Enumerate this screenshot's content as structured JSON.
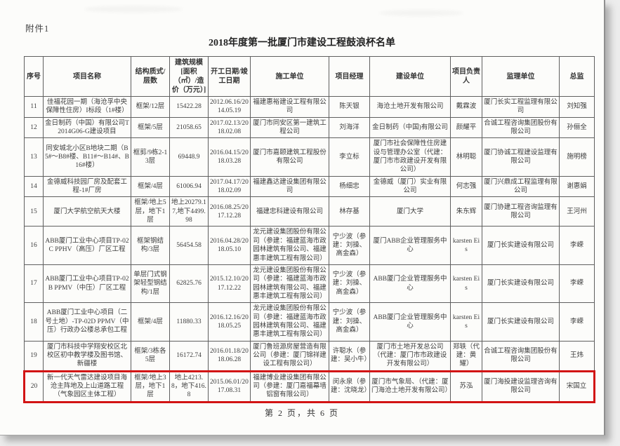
{
  "page": {
    "attachment_label": "附件1",
    "title": "2018年度第一批厦门市建设工程鼓浪杯名单",
    "footer": "第 2 页，共 6 页"
  },
  "table": {
    "columns": [
      "序号",
      "项目名称",
      "结构质式/层数",
      "建筑规模[面积（㎡）/造价（万元）]",
      "开工日期/竣工日期",
      "施工单位",
      "项目经理",
      "建设单位",
      "项目负责人",
      "监理单位",
      "总监"
    ],
    "rows": [
      [
        "11",
        "佳福花园一期（海沧孚中央保障性住房）I标段（1#楼）",
        "框架/12层",
        "15422.28",
        "2012.06.16/2014.05.19",
        "福建惠裕建设工程有限公司",
        "陈天银",
        "海沧土地开发有限公司",
        "戴霖波",
        "厦门长实工程监理有限公司",
        "刘知强"
      ],
      [
        "12",
        "金日制药（中国）有限公司T2014G06-G建设项目",
        "框架/5层",
        "21058.65",
        "2017.02.13/2018.02.08",
        "厦门市同安区第一建筑工程公司",
        "刘海洋",
        "金日制药（中国)有限公司",
        "颜耀平",
        "合诚工程咨询集团股份有限公司",
        "孙俪全"
      ],
      [
        "13",
        "同安城北小区B地块二期（B5#～B8#楼、B11#～B14#、B16#楼）",
        "框剪/9栋2-13层",
        "69448.9",
        "2016.04.15/2018.03.28",
        "厦门市嘉颐建筑工程股份有限公司",
        "李立标",
        "厦门市社会保障性住房建设与管理办公室（代建：厦门市市政建设开发有限公司）",
        "林明聪",
        "厦门协诚工程建设监理有限公司",
        "施明榜"
      ],
      [
        "14",
        "金德威科技园厂房及配套工程-1#厂房",
        "框架/4层",
        "61006.94",
        "2017.04.17/2018.02.09",
        "福建鑫达建设集团有限公司",
        "杨细忠",
        "金德威（厦门）实业有限公司",
        "何志强",
        "厦门兴鼎成工程监理有限公司",
        "谢惠娟"
      ],
      [
        "15",
        "厦门大学航空航天大楼",
        "框架/地上5层，地下1层",
        "地上20279.17,地下4499.98",
        "2016.08.25/2017.12.28",
        "福建忠科建设有限公司",
        "林存基",
        "厦门大学",
        "朱东辉",
        "厦门协建工程咨询监理有限公司",
        "王河州"
      ],
      [
        "16",
        "ABB厦门工业中心项目TP-02C PPHV（高压）厂区工程",
        "框架钢结构/3层",
        "56454.58",
        "2016.04.28/2018.05.10",
        "龙元建设集团股份有限公司（参建：福建蓝海市政园林建筑有限公司、福建惠丰建筑工程有限公司）",
        "宁少波（参建：刘操、高金森）",
        "厦门ABB企业管理服务中心",
        "karsten Eis",
        "厦门长实建设有限公司",
        "李嵘"
      ],
      [
        "17",
        "ABB厦门工业中心项目TP-02B PPMV（中压）厂区工程",
        "单层门式钢架轻型钢结构/1层",
        "62825.76",
        "2015.12.10/2017.12.22",
        "龙元建设集团股份有限公司（参建：福建蓝海市政园林建筑有限公司、福建惠丰建筑工程有限公司）",
        "宁少波（参建：刘操、高金森）",
        "ABB厦门企业管理服务中心",
        "karsten Eis",
        "厦门长实建设有限公司",
        "李嵘"
      ],
      [
        "18",
        "ABB厦门工业中心项目（二号土地）-TP-02D PPMV（中压）行政办公楼总承包工程",
        "框架/4层",
        "11880.33",
        "2016.12.16/2018.05.25",
        "龙元建设集团股份有限公司（参建：福建蓝海市政园林建筑有限公司、福建惠丰建筑工程有限公司）",
        "宁少波（参建：刘操、高金森）",
        "ABB厦门企业管理服务中心",
        "karsten Eis",
        "厦门长实建设有限公司",
        "李嵘"
      ],
      [
        "19",
        "厦门市科技中学翔安校区北校区初中教学楼及图书馆、新疆楼",
        "框架/3栋各5层",
        "16172.74",
        "2016.01.18/2018.06.28",
        "厦门鲁班源房屋营造有限公司（参建：厦门锦祥建设工程有限公司）",
        "许聪水（参建：吴小牛）",
        "厦门市土地开发总公司（代建：厦门市市政建设开发有限公司）",
        "郑轶（代建：黄耀）",
        "合诚工程咨询集团股份有限公司",
        "王炜"
      ],
      [
        "20",
        "新一代天气雷达建设项目海沧主阵地及上山道路工程（气象园区主体工程）",
        "框架/地上3层，地下1层",
        "地上4213.8，地下416.8",
        "2015.06.01/2017.08.31",
        "福建博业建设集团有限公司（参建：厦门嘉福幕墙铝窗有限公司）",
        "闵永泉（参建：沈晓龙）",
        "厦门市气象局、（代建：厦门海沧土地开发有限公司）",
        "苏泓",
        "厦门海投建设监理咨询有限公司",
        "宋国立"
      ]
    ],
    "highlighted_row_index": 9,
    "highlight_color": "#d21414"
  }
}
